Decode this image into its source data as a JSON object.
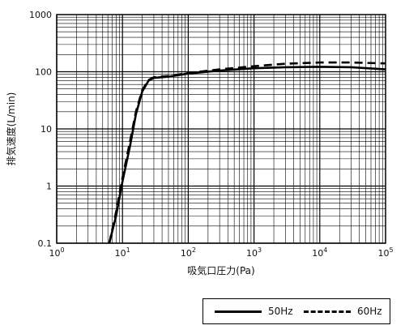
{
  "chart_data": {
    "type": "line",
    "xlabel": "吸気口圧力(Pa)",
    "ylabel": "排気速度(L/min)",
    "x_scale": "log",
    "y_scale": "log",
    "xlim": [
      1,
      100000
    ],
    "ylim": [
      0.1,
      1000
    ],
    "x_ticks": [
      {
        "base": "10",
        "exp": "0"
      },
      {
        "base": "10",
        "exp": "1"
      },
      {
        "base": "10",
        "exp": "2"
      },
      {
        "base": "10",
        "exp": "3"
      },
      {
        "base": "10",
        "exp": "4"
      },
      {
        "base": "10",
        "exp": "5"
      }
    ],
    "y_ticks": [
      "0.1",
      "1",
      "10",
      "100",
      "1000"
    ],
    "grid": true,
    "legend_position": "bottom-right",
    "series": [
      {
        "name": "50Hz",
        "style": "solid",
        "x": [
          6.3,
          8,
          10,
          13,
          16,
          20,
          25,
          30,
          50,
          100,
          300,
          1000,
          3000,
          10000,
          30000,
          100000
        ],
        "y": [
          0.1,
          0.3,
          1.2,
          5,
          18,
          45,
          70,
          78,
          82,
          93,
          105,
          115,
          120,
          122,
          120,
          110
        ]
      },
      {
        "name": "60Hz",
        "style": "dashed",
        "x": [
          6.3,
          8,
          10,
          13,
          16,
          20,
          25,
          30,
          50,
          100,
          300,
          1000,
          3000,
          10000,
          30000,
          100000
        ],
        "y": [
          0.1,
          0.35,
          1.4,
          6,
          20,
          48,
          72,
          80,
          84,
          95,
          110,
          125,
          138,
          145,
          145,
          140
        ]
      }
    ]
  }
}
